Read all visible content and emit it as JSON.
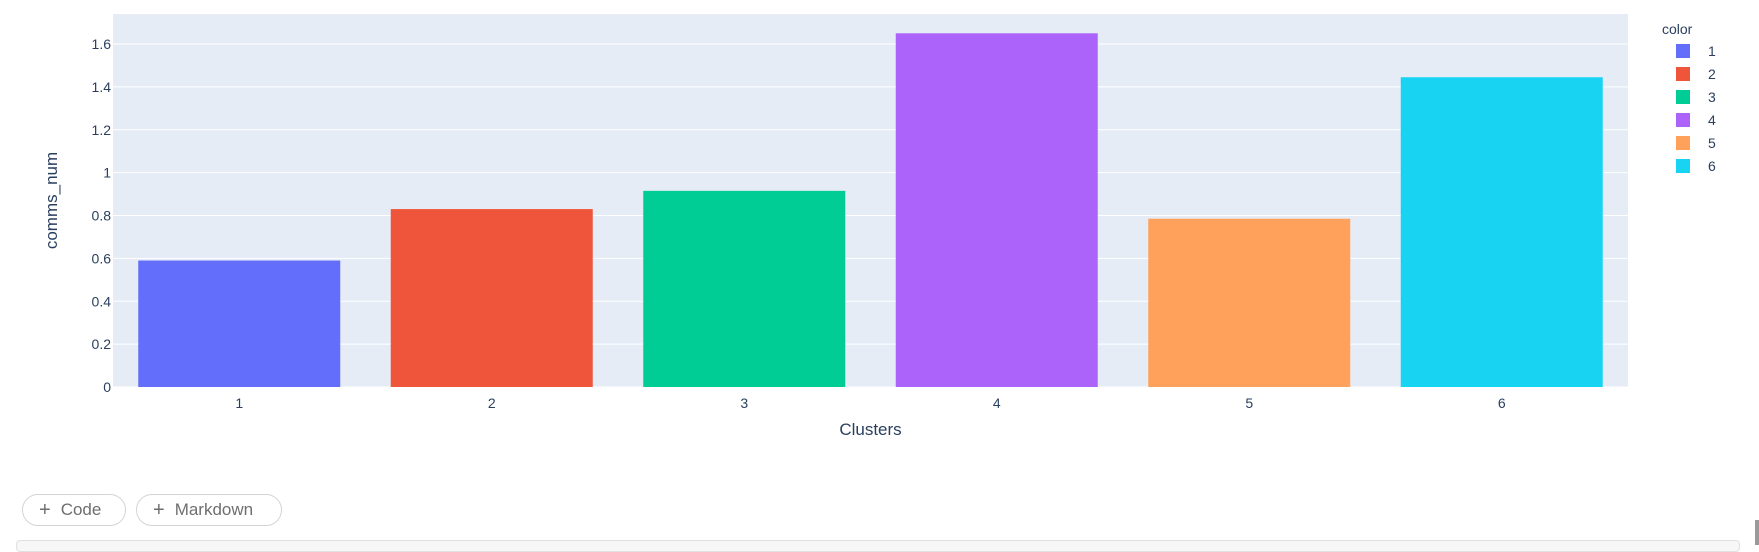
{
  "chart_data": {
    "type": "bar",
    "categories": [
      "1",
      "2",
      "3",
      "4",
      "5",
      "6"
    ],
    "values": [
      0.59,
      0.83,
      0.915,
      1.65,
      0.785,
      1.445
    ],
    "xlabel": "Clusters",
    "ylabel": "comms_num",
    "ylim": [
      0,
      1.74
    ],
    "yticks": [
      0,
      0.2,
      0.4,
      0.6,
      0.8,
      1,
      1.2,
      1.4,
      1.6
    ],
    "ytick_labels": [
      "0",
      "0.2",
      "0.4",
      "0.6",
      "0.8",
      "1",
      "1.2",
      "1.4",
      "1.6"
    ],
    "colors": [
      "#636efa",
      "#EF553B",
      "#00cc96",
      "#ab63fa",
      "#FFA15A",
      "#19d3f3"
    ],
    "legend": {
      "title": "color",
      "entries": [
        "1",
        "2",
        "3",
        "4",
        "5",
        "6"
      ],
      "placement": "top-right"
    },
    "grid": true,
    "plot_bg": "#E5ECF6"
  },
  "toolbar": {
    "code_label": "Code",
    "markdown_label": "Markdown"
  }
}
